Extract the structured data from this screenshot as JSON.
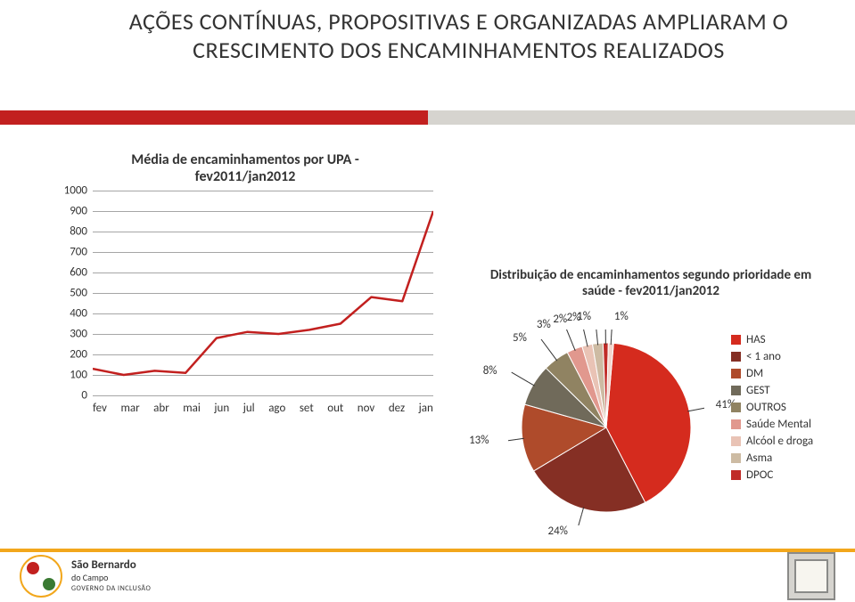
{
  "title": {
    "line1": "AÇÕES CONTÍNUAS, PROPOSITIVAS E ORGANIZADAS AMPLIARAM O",
    "line2": "CRESCIMENTO DOS ENCAMINHAMENTOS REALIZADOS"
  },
  "stripe": {
    "red_color": "#c2201f",
    "gray_color": "#d6d4cf"
  },
  "line_chart": {
    "type": "line",
    "title_line1": "Média de encaminhamentos por UPA -",
    "title_line2": "fev2011/jan2012",
    "categories": [
      "fev",
      "mar",
      "abr",
      "mai",
      "jun",
      "jul",
      "ago",
      "set",
      "out",
      "nov",
      "dez",
      "jan"
    ],
    "values": [
      130,
      100,
      120,
      110,
      280,
      310,
      300,
      320,
      350,
      480,
      460,
      900
    ],
    "line_color": "#c2201f",
    "line_width": 2.5,
    "ylim": [
      0,
      1000
    ],
    "ytick_step": 100,
    "grid_color": "#a6a6a6",
    "label_fontsize": 13,
    "title_fontsize": 16,
    "background_color": "#ffffff"
  },
  "pie_chart": {
    "type": "pie",
    "title_line1": "Distribuição de encaminhamentos segundo prioridade em",
    "title_line2": "saúde - fev2011/jan2012",
    "title_fontsize": 15,
    "label_fontsize": 13,
    "start_angle_deg": -85,
    "slices": [
      {
        "name": "HAS",
        "label": "HAS",
        "value": 41,
        "percent_label": "41%",
        "color": "#d52b1e"
      },
      {
        "name": "< 1 ano",
        "label": "< 1 ano",
        "value": 24,
        "percent_label": "24%",
        "color": "#852f24"
      },
      {
        "name": "DM",
        "label": "DM",
        "value": 13,
        "percent_label": "13%",
        "color": "#af4b2b"
      },
      {
        "name": "GEST",
        "label": "GEST",
        "value": 8,
        "percent_label": "8%",
        "color": "#706a5a"
      },
      {
        "name": "OUTROS",
        "label": "OUTROS",
        "value": 5,
        "percent_label": "5%",
        "color": "#908362"
      },
      {
        "name": "Saúde Mental",
        "label": "Saúde Mental",
        "value": 3,
        "percent_label": "3%",
        "color": "#e1988e"
      },
      {
        "name": "Alcóol e droga",
        "label": "Alcóol e droga",
        "value": 2,
        "percent_label": "2%",
        "color": "#e9c3b5"
      },
      {
        "name": "Asma",
        "label": "Asma",
        "value": 2,
        "percent_label": "2%",
        "color": "#cdbba3"
      },
      {
        "name": "DPOC",
        "label": "DPOC",
        "value": 1,
        "percent_label": "1%",
        "color": "#c02c28"
      },
      {
        "name": "_other",
        "label": "",
        "value": 1,
        "percent_label": "1%",
        "color": "#f2d6cd"
      }
    ]
  },
  "footer": {
    "city_name": "São Bernardo",
    "city_sub": "do Campo",
    "tagline": "GOVERNO DA INCLUSÃO"
  }
}
